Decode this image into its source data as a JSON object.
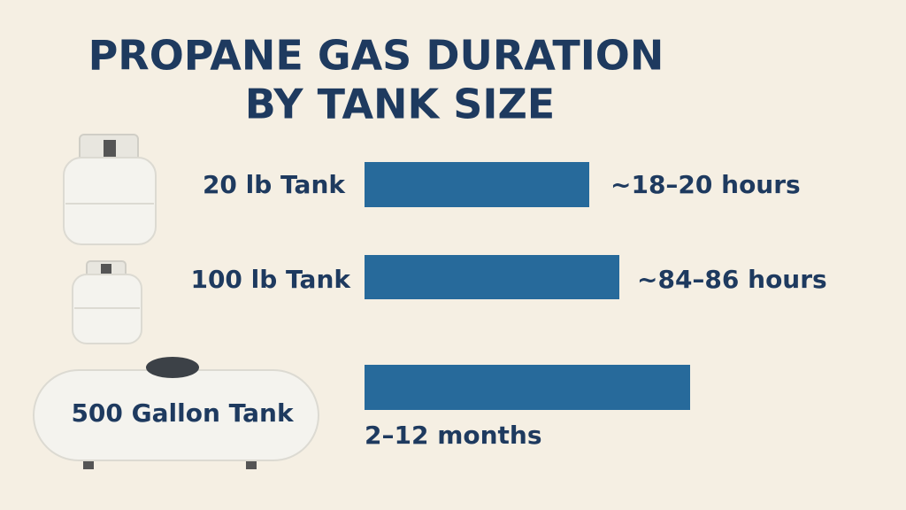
{
  "title": [
    "PROPANE GAS DURATION",
    "BY TANK SIZE"
  ],
  "rows": [
    {
      "label": "20 lb Tank",
      "duration": "~18–20 hours"
    },
    {
      "label": "100 lb Tank",
      "duration": "~84–86 hours"
    },
    {
      "label": "500 Gallon Tank",
      "duration": "2–12 months"
    }
  ]
}
